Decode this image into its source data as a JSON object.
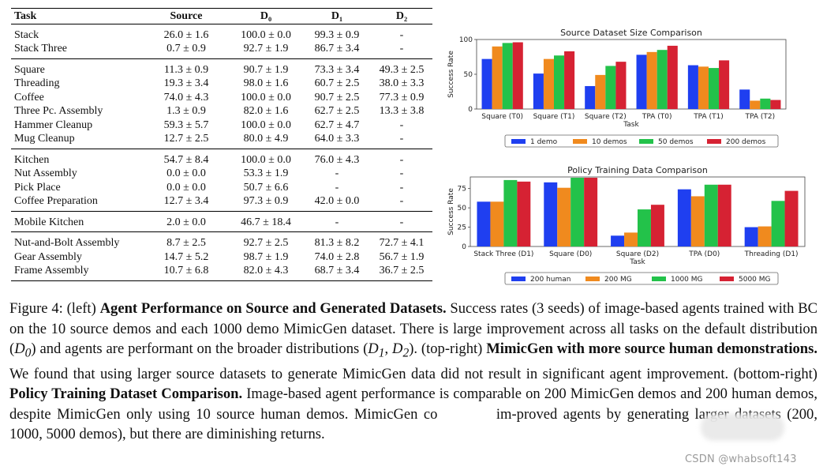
{
  "table": {
    "headers": [
      "Task",
      "Source",
      "D₀",
      "D₁",
      "D₂"
    ],
    "groups": [
      [
        [
          "Stack",
          "26.0 ± 1.6",
          "100.0 ± 0.0",
          "99.3 ± 0.9",
          "-"
        ],
        [
          "Stack Three",
          "0.7 ± 0.9",
          "92.7 ± 1.9",
          "86.7 ± 3.4",
          "-"
        ]
      ],
      [
        [
          "Square",
          "11.3 ± 0.9",
          "90.7 ± 1.9",
          "73.3 ± 3.4",
          "49.3 ± 2.5"
        ],
        [
          "Threading",
          "19.3 ± 3.4",
          "98.0 ± 1.6",
          "60.7 ± 2.5",
          "38.0 ± 3.3"
        ],
        [
          "Coffee",
          "74.0 ± 4.3",
          "100.0 ± 0.0",
          "90.7 ± 2.5",
          "77.3 ± 0.9"
        ],
        [
          "Three Pc. Assembly",
          "1.3 ± 0.9",
          "82.0 ± 1.6",
          "62.7 ± 2.5",
          "13.3 ± 3.8"
        ],
        [
          "Hammer Cleanup",
          "59.3 ± 5.7",
          "100.0 ± 0.0",
          "62.7 ± 4.7",
          "-"
        ],
        [
          "Mug Cleanup",
          "12.7 ± 2.5",
          "80.0 ± 4.9",
          "64.0 ± 3.3",
          "-"
        ]
      ],
      [
        [
          "Kitchen",
          "54.7 ± 8.4",
          "100.0 ± 0.0",
          "76.0 ± 4.3",
          "-"
        ],
        [
          "Nut Assembly",
          "0.0 ± 0.0",
          "53.3 ± 1.9",
          "-",
          "-"
        ],
        [
          "Pick Place",
          "0.0 ± 0.0",
          "50.7 ± 6.6",
          "-",
          "-"
        ],
        [
          "Coffee Preparation",
          "12.7 ± 3.4",
          "97.3 ± 0.9",
          "42.0 ± 0.0",
          "-"
        ]
      ],
      [
        [
          "Mobile Kitchen",
          "2.0 ± 0.0",
          "46.7 ± 18.4",
          "-",
          "-"
        ]
      ],
      [
        [
          "Nut-and-Bolt Assembly",
          "8.7 ± 2.5",
          "92.7 ± 2.5",
          "81.3 ± 8.2",
          "72.7 ± 4.1"
        ],
        [
          "Gear Assembly",
          "14.7 ± 5.2",
          "98.7 ± 1.9",
          "74.0 ± 2.8",
          "56.7 ± 1.9"
        ],
        [
          "Frame Assembly",
          "10.7 ± 6.8",
          "82.0 ± 4.3",
          "68.7 ± 3.4",
          "36.7 ± 2.5"
        ]
      ]
    ]
  },
  "chart_data": [
    {
      "type": "bar",
      "title": "Source Dataset Size Comparison",
      "xlabel": "Task",
      "ylabel": "Success Rate",
      "ylim": [
        0,
        100
      ],
      "yticks": [
        0,
        50,
        100
      ],
      "legend_position": "bottom",
      "categories": [
        "Square (T0)",
        "Square (T1)",
        "Square (T2)",
        "TPA (T0)",
        "TPA (T1)",
        "TPA (T2)"
      ],
      "series": [
        {
          "name": "1 demo",
          "color": "#1f3ff0",
          "values": [
            72,
            51,
            33,
            78,
            63,
            28
          ]
        },
        {
          "name": "10 demos",
          "color": "#f08a1e",
          "values": [
            90,
            72,
            49,
            82,
            61,
            12
          ]
        },
        {
          "name": "50 demos",
          "color": "#23c24a",
          "values": [
            95,
            77,
            62,
            85,
            59,
            15
          ]
        },
        {
          "name": "200 demos",
          "color": "#d62233",
          "values": [
            96,
            83,
            68,
            91,
            70,
            13
          ]
        }
      ]
    },
    {
      "type": "bar",
      "title": "Policy Training Data Comparison",
      "xlabel": "Task",
      "ylabel": "Success Rate",
      "ylim": [
        0,
        90
      ],
      "yticks": [
        0,
        25,
        50,
        75
      ],
      "legend_position": "bottom",
      "categories": [
        "Stack Three (D1)",
        "Square (D0)",
        "Square (D2)",
        "TPA (D0)",
        "Threading (D1)"
      ],
      "series": [
        {
          "name": "200 human",
          "color": "#1f3ff0",
          "values": [
            58,
            83,
            14,
            74,
            25
          ]
        },
        {
          "name": "200 MG",
          "color": "#f08a1e",
          "values": [
            58,
            76,
            18,
            65,
            26
          ]
        },
        {
          "name": "1000 MG",
          "color": "#23c24a",
          "values": [
            86,
            89,
            48,
            80,
            59
          ]
        },
        {
          "name": "5000 MG",
          "color": "#d62233",
          "values": [
            84,
            89,
            54,
            80,
            72
          ]
        }
      ]
    }
  ],
  "caption": {
    "figure_label": "Figure 4: (left)",
    "bold_1": "Agent Performance on Source and Generated Datasets.",
    "text_1a": "Success rates (3 seeds) of image-based agents trained with BC on the 10 source demos and each 1000 demo MimicGen dataset. There is large improvement across all tasks on the default distribution (",
    "d0": "D",
    "d0_sub": "0",
    "text_1b": ") and agents are performant on the broader distributions (",
    "d1": "D",
    "d1_sub": "1",
    "comma": ", ",
    "d2": "D",
    "d2_sub": "2",
    "text_1c": "). (top-right)",
    "bold_2": "MimicGen with more source human demonstrations.",
    "text_2": "We found that using larger source datasets to generate MimicGen data did not result in significant agent improvement. (bottom-right)",
    "bold_3": "Policy Training Dataset Comparison.",
    "text_3": "Image-based agent performance is comparable on 200 MimicGen demos and 200 human demos, despite MimicGen only using 10 source human demos. MimicGen co                    im-proved agents by generating larger datasets (200, 1000, 5000 demos), but there are diminishing returns."
  },
  "watermark": "CSDN @whabsoft143"
}
